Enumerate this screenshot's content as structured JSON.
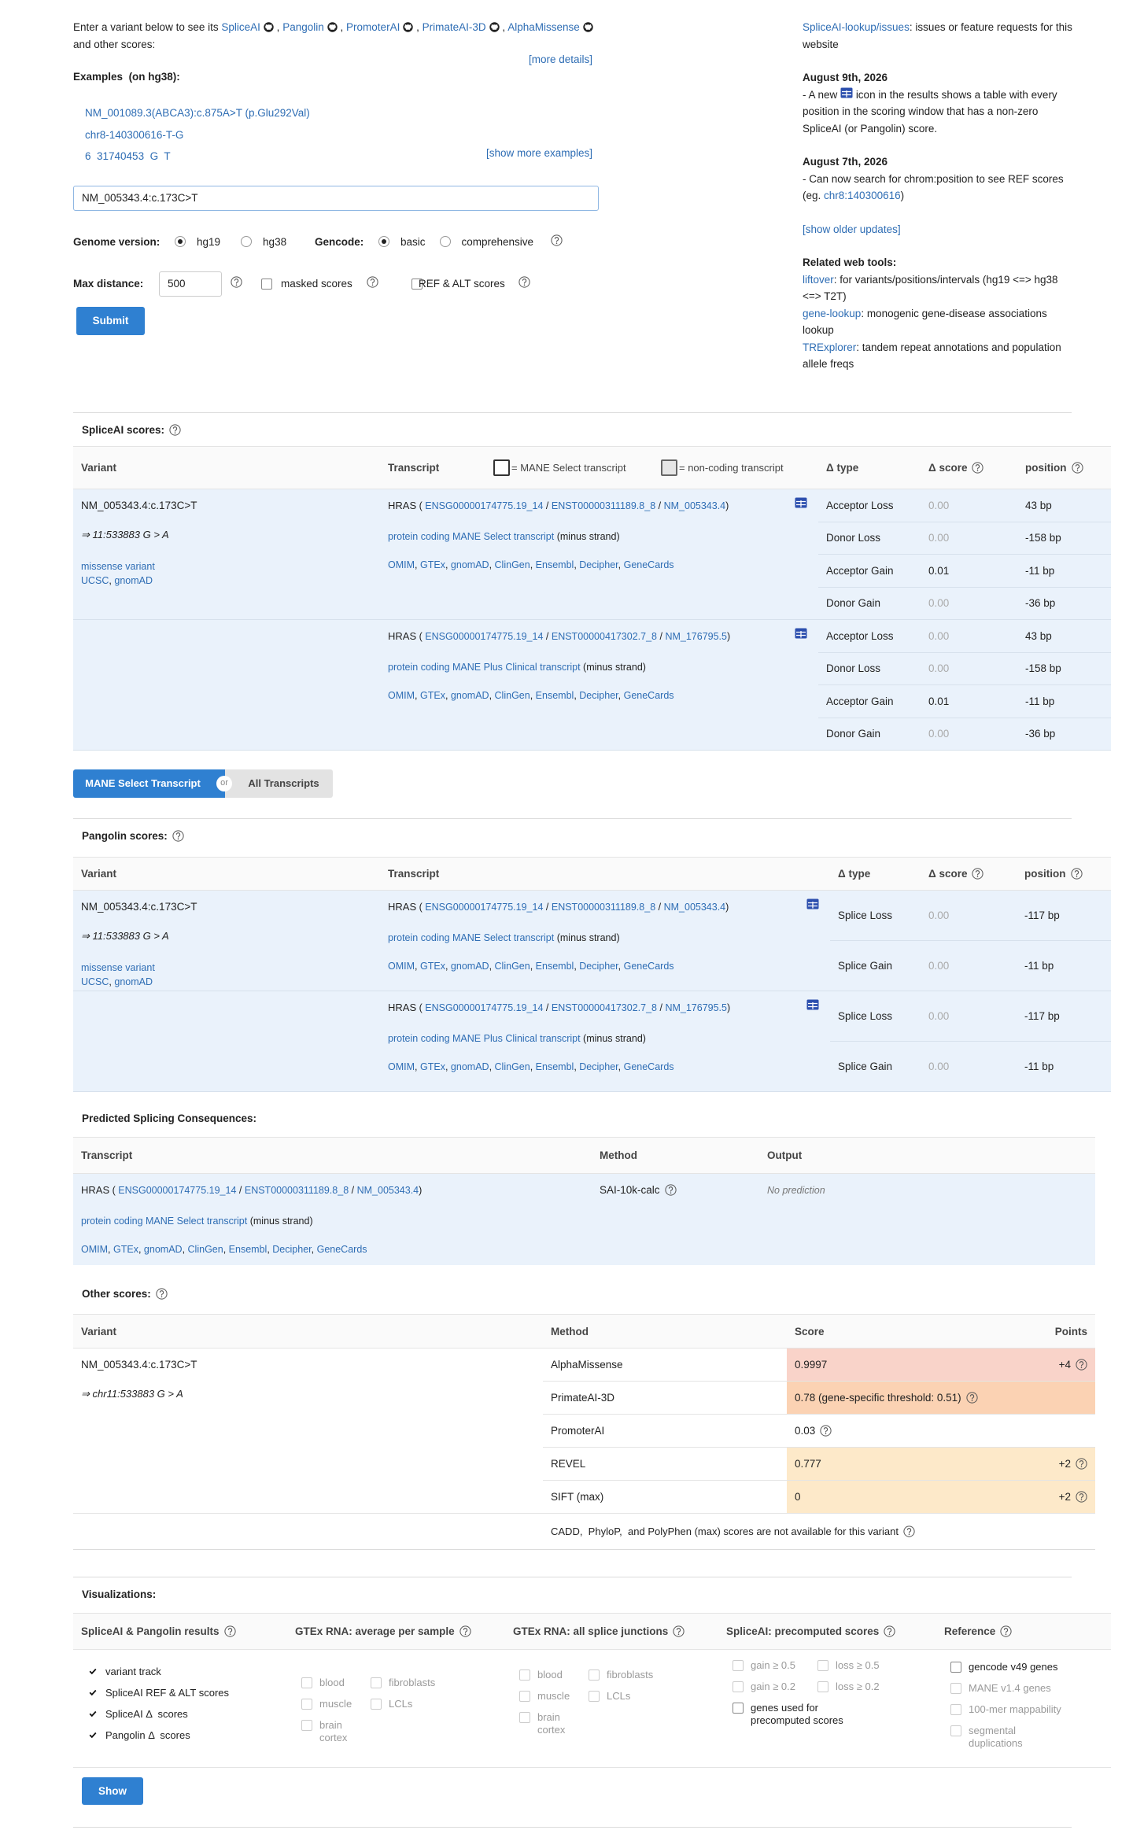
{
  "punct": {
    "comma": ",",
    "open": "(",
    "close": ")",
    "slash": "/"
  },
  "header": {
    "intro": "Enter a variant below to see its",
    "tools": [
      "SpliceAI",
      "Pangolin",
      "PromoterAI",
      "PrimateAI-3D",
      "AlphaMissense"
    ],
    "intro_end": "and other scores:",
    "more_details": "[more details]",
    "examples_label": "Examples",
    "examples_build": "(on hg38):",
    "examples": [
      "NM_001089.3(ABCA3):c.875A>T (p.Glu292Val)",
      "chr8-140300616-T-G",
      "6  31740453  G  T"
    ],
    "show_more": "[show more examples]",
    "search_value": "NM_005343.4:c.173C>T",
    "genome_label": "Genome version:",
    "genome_options": [
      "hg19",
      "hg38"
    ],
    "genome_selected": 0,
    "gencode_label": "Gencode:",
    "gencode_options": [
      "basic",
      "comprehensive"
    ],
    "gencode_selected": 0,
    "max_distance_label": "Max distance:",
    "max_distance": "500",
    "masked_scores": "masked scores",
    "ref_alt_scores": "REF & ALT scores",
    "submit": "Submit"
  },
  "sidebar": {
    "issues_link": "SpliceAI-lookup/issues",
    "issues_text": ": issues or feature requests for this website",
    "updates": [
      {
        "date": "August 9th, 2026",
        "text_before": "- A new",
        "text_after": "icon in the results shows a table with every position in the scoring window that has a non-zero SpliceAI (or Pangolin) score."
      },
      {
        "date": "August 7th, 2026",
        "text_before": "- Can now search for chrom:position to see REF scores (eg.",
        "link": "chr8:140300616",
        "text_after": ")"
      }
    ],
    "show_older": "[show older updates]",
    "related_title": "Related web tools:",
    "related": [
      {
        "link": "liftover",
        "text": ": for variants/positions/intervals (hg19 <=> hg38 <=> T2T)"
      },
      {
        "link": "gene-lookup",
        "text": ": monogenic gene-disease associations lookup"
      },
      {
        "link": "TRExplorer",
        "text": ": tandem repeat annotations and population allele freqs"
      }
    ]
  },
  "spliceai": {
    "title": "SpliceAI scores:",
    "headers": {
      "variant": "Variant",
      "transcript": "Transcript",
      "mane_legend": "= MANE Select transcript",
      "noncoding_legend": "= non-coding transcript",
      "type": "Δ type",
      "score": "Δ score",
      "position": "position"
    },
    "variant": {
      "name": "NM_005343.4:c.173C>T",
      "position": "⇒ 11:533883 G > A",
      "consequence": "missense variant",
      "links": [
        "UCSC",
        "gnomAD"
      ]
    },
    "transcripts": [
      {
        "gene": "HRAS",
        "gene_id": "ENSG00000174775.19_14",
        "transcript_id": "ENST00000311189.8_8",
        "refseq_id": "NM_005343.4",
        "biotype": "protein coding",
        "mane": "MANE Select transcript",
        "strand": "(minus strand)",
        "links": [
          "OMIM",
          "GTEx",
          "gnomAD",
          "ClinGen",
          "Ensembl",
          "Decipher",
          "GeneCards"
        ],
        "scores": [
          {
            "type": "Acceptor Loss",
            "score": "0.00",
            "position": "43 bp"
          },
          {
            "type": "Donor Loss",
            "score": "0.00",
            "position": "-158 bp"
          },
          {
            "type": "Acceptor Gain",
            "score": "0.01",
            "position": "-11 bp"
          },
          {
            "type": "Donor Gain",
            "score": "0.00",
            "position": "-36 bp"
          }
        ]
      },
      {
        "gene": "HRAS",
        "gene_id": "ENSG00000174775.19_14",
        "transcript_id": "ENST00000417302.7_8",
        "refseq_id": "NM_176795.5",
        "biotype": "protein coding",
        "mane": "MANE Plus Clinical transcript",
        "strand": "(minus strand)",
        "links": [
          "OMIM",
          "GTEx",
          "gnomAD",
          "ClinGen",
          "Ensembl",
          "Decipher",
          "GeneCards"
        ],
        "scores": [
          {
            "type": "Acceptor Loss",
            "score": "0.00",
            "position": "43 bp"
          },
          {
            "type": "Donor Loss",
            "score": "0.00",
            "position": "-158 bp"
          },
          {
            "type": "Acceptor Gain",
            "score": "0.01",
            "position": "-11 bp"
          },
          {
            "type": "Donor Gain",
            "score": "0.00",
            "position": "-36 bp"
          }
        ]
      }
    ]
  },
  "toggle": {
    "active": "MANE Select Transcript",
    "or": "or",
    "other": "All Transcripts"
  },
  "pangolin": {
    "title": "Pangolin scores:",
    "headers": {
      "variant": "Variant",
      "transcript": "Transcript",
      "type": "Δ type",
      "score": "Δ score",
      "position": "position"
    },
    "variant": {
      "name": "NM_005343.4:c.173C>T",
      "position": "⇒ 11:533883 G > A",
      "consequence": "missense variant",
      "links": [
        "UCSC",
        "gnomAD"
      ]
    },
    "transcripts": [
      {
        "gene": "HRAS",
        "gene_id": "ENSG00000174775.19_14",
        "transcript_id": "ENST00000311189.8_8",
        "refseq_id": "NM_005343.4",
        "biotype": "protein coding",
        "mane": "MANE Select transcript",
        "strand": "(minus strand)",
        "links": [
          "OMIM",
          "GTEx",
          "gnomAD",
          "ClinGen",
          "Ensembl",
          "Decipher",
          "GeneCards"
        ],
        "scores": [
          {
            "type": "Splice Loss",
            "score": "0.00",
            "position": "-117 bp"
          },
          {
            "type": "Splice Gain",
            "score": "0.00",
            "position": "-11 bp"
          }
        ]
      },
      {
        "gene": "HRAS",
        "gene_id": "ENSG00000174775.19_14",
        "transcript_id": "ENST00000417302.7_8",
        "refseq_id": "NM_176795.5",
        "biotype": "protein coding",
        "mane": "MANE Plus Clinical transcript",
        "strand": "(minus strand)",
        "links": [
          "OMIM",
          "GTEx",
          "gnomAD",
          "ClinGen",
          "Ensembl",
          "Decipher",
          "GeneCards"
        ],
        "scores": [
          {
            "type": "Splice Loss",
            "score": "0.00",
            "position": "-117 bp"
          },
          {
            "type": "Splice Gain",
            "score": "0.00",
            "position": "-11 bp"
          }
        ]
      }
    ]
  },
  "consequences": {
    "title": "Predicted Splicing Consequences:",
    "headers": {
      "transcript": "Transcript",
      "method": "Method",
      "output": "Output"
    },
    "transcript": {
      "gene": "HRAS",
      "gene_id": "ENSG00000174775.19_14",
      "transcript_id": "ENST00000311189.8_8",
      "refseq_id": "NM_005343.4",
      "biotype": "protein coding",
      "mane": "MANE Select transcript",
      "strand": "(minus strand)",
      "links": [
        "OMIM",
        "GTEx",
        "gnomAD",
        "ClinGen",
        "Ensembl",
        "Decipher",
        "GeneCards"
      ]
    },
    "method": "SAI-10k-calc",
    "output": "No prediction"
  },
  "other_scores": {
    "title": "Other scores:",
    "headers": {
      "variant": "Variant",
      "method": "Method",
      "score": "Score",
      "points": "Points"
    },
    "variant": {
      "name": "NM_005343.4:c.173C>T",
      "position": "⇒ chr11:533883 G > A"
    },
    "rows": [
      {
        "method": "AlphaMissense",
        "score": "0.9997",
        "points": "+4",
        "color": "#f9d3c9"
      },
      {
        "method": "PrimateAI-3D",
        "score": "0.78",
        "note": "(gene-specific threshold: 0.51)",
        "color": "#fbd2b3"
      },
      {
        "method": "PromoterAI",
        "score": "0.03"
      },
      {
        "method": "REVEL",
        "score": "0.777",
        "points": "+2",
        "color": "#fde9c9"
      },
      {
        "method": "SIFT (max)",
        "score": "0",
        "points": "+2",
        "color": "#fde9c9"
      }
    ],
    "note": "CADD,  PhyloP,  and PolyPhen (max) scores are not available for this variant"
  },
  "visualizations": {
    "title": "Visualizations:",
    "columns": [
      {
        "title": "SpliceAI & Pangolin results",
        "items": [
          {
            "label": "variant track",
            "checked": true,
            "enabled": true
          },
          {
            "label": "SpliceAI REF & ALT scores",
            "checked": true,
            "enabled": true
          },
          {
            "label": "SpliceAI Δ  scores",
            "checked": true,
            "enabled": true
          },
          {
            "label": "Pangolin Δ  scores",
            "checked": true,
            "enabled": true
          }
        ]
      },
      {
        "title": "GTEx RNA: average per sample",
        "items": [
          {
            "label": "blood",
            "checked": false,
            "enabled": false
          },
          {
            "label": "fibroblasts",
            "checked": false,
            "enabled": false
          },
          {
            "label": "muscle",
            "checked": false,
            "enabled": false
          },
          {
            "label": "LCLs",
            "checked": false,
            "enabled": false
          },
          {
            "label": "brain cortex",
            "checked": false,
            "enabled": false
          }
        ]
      },
      {
        "title": "GTEx RNA: all splice junctions",
        "items": [
          {
            "label": "blood",
            "checked": false,
            "enabled": false
          },
          {
            "label": "fibroblasts",
            "checked": false,
            "enabled": false
          },
          {
            "label": "muscle",
            "checked": false,
            "enabled": false
          },
          {
            "label": "LCLs",
            "checked": false,
            "enabled": false
          },
          {
            "label": "brain cortex",
            "checked": false,
            "enabled": false
          }
        ]
      },
      {
        "title": "SpliceAI: precomputed scores",
        "items": [
          {
            "label": "gain ≥ 0.5",
            "checked": false,
            "enabled": false
          },
          {
            "label": "loss ≥ 0.5",
            "checked": false,
            "enabled": false
          },
          {
            "label": "gain ≥ 0.2",
            "checked": false,
            "enabled": false
          },
          {
            "label": "loss ≥ 0.2",
            "checked": false,
            "enabled": false
          },
          {
            "label": "genes used for precomputed scores",
            "checked": false,
            "enabled": true
          }
        ]
      },
      {
        "title": "Reference",
        "items": [
          {
            "label": "gencode v49 genes",
            "checked": false,
            "enabled": true
          },
          {
            "label": "MANE v1.4 genes",
            "checked": false,
            "enabled": false
          },
          {
            "label": "100-mer mappability",
            "checked": false,
            "enabled": false
          },
          {
            "label": "segmental duplications",
            "checked": false,
            "enabled": false
          }
        ]
      }
    ],
    "show": "Show"
  }
}
